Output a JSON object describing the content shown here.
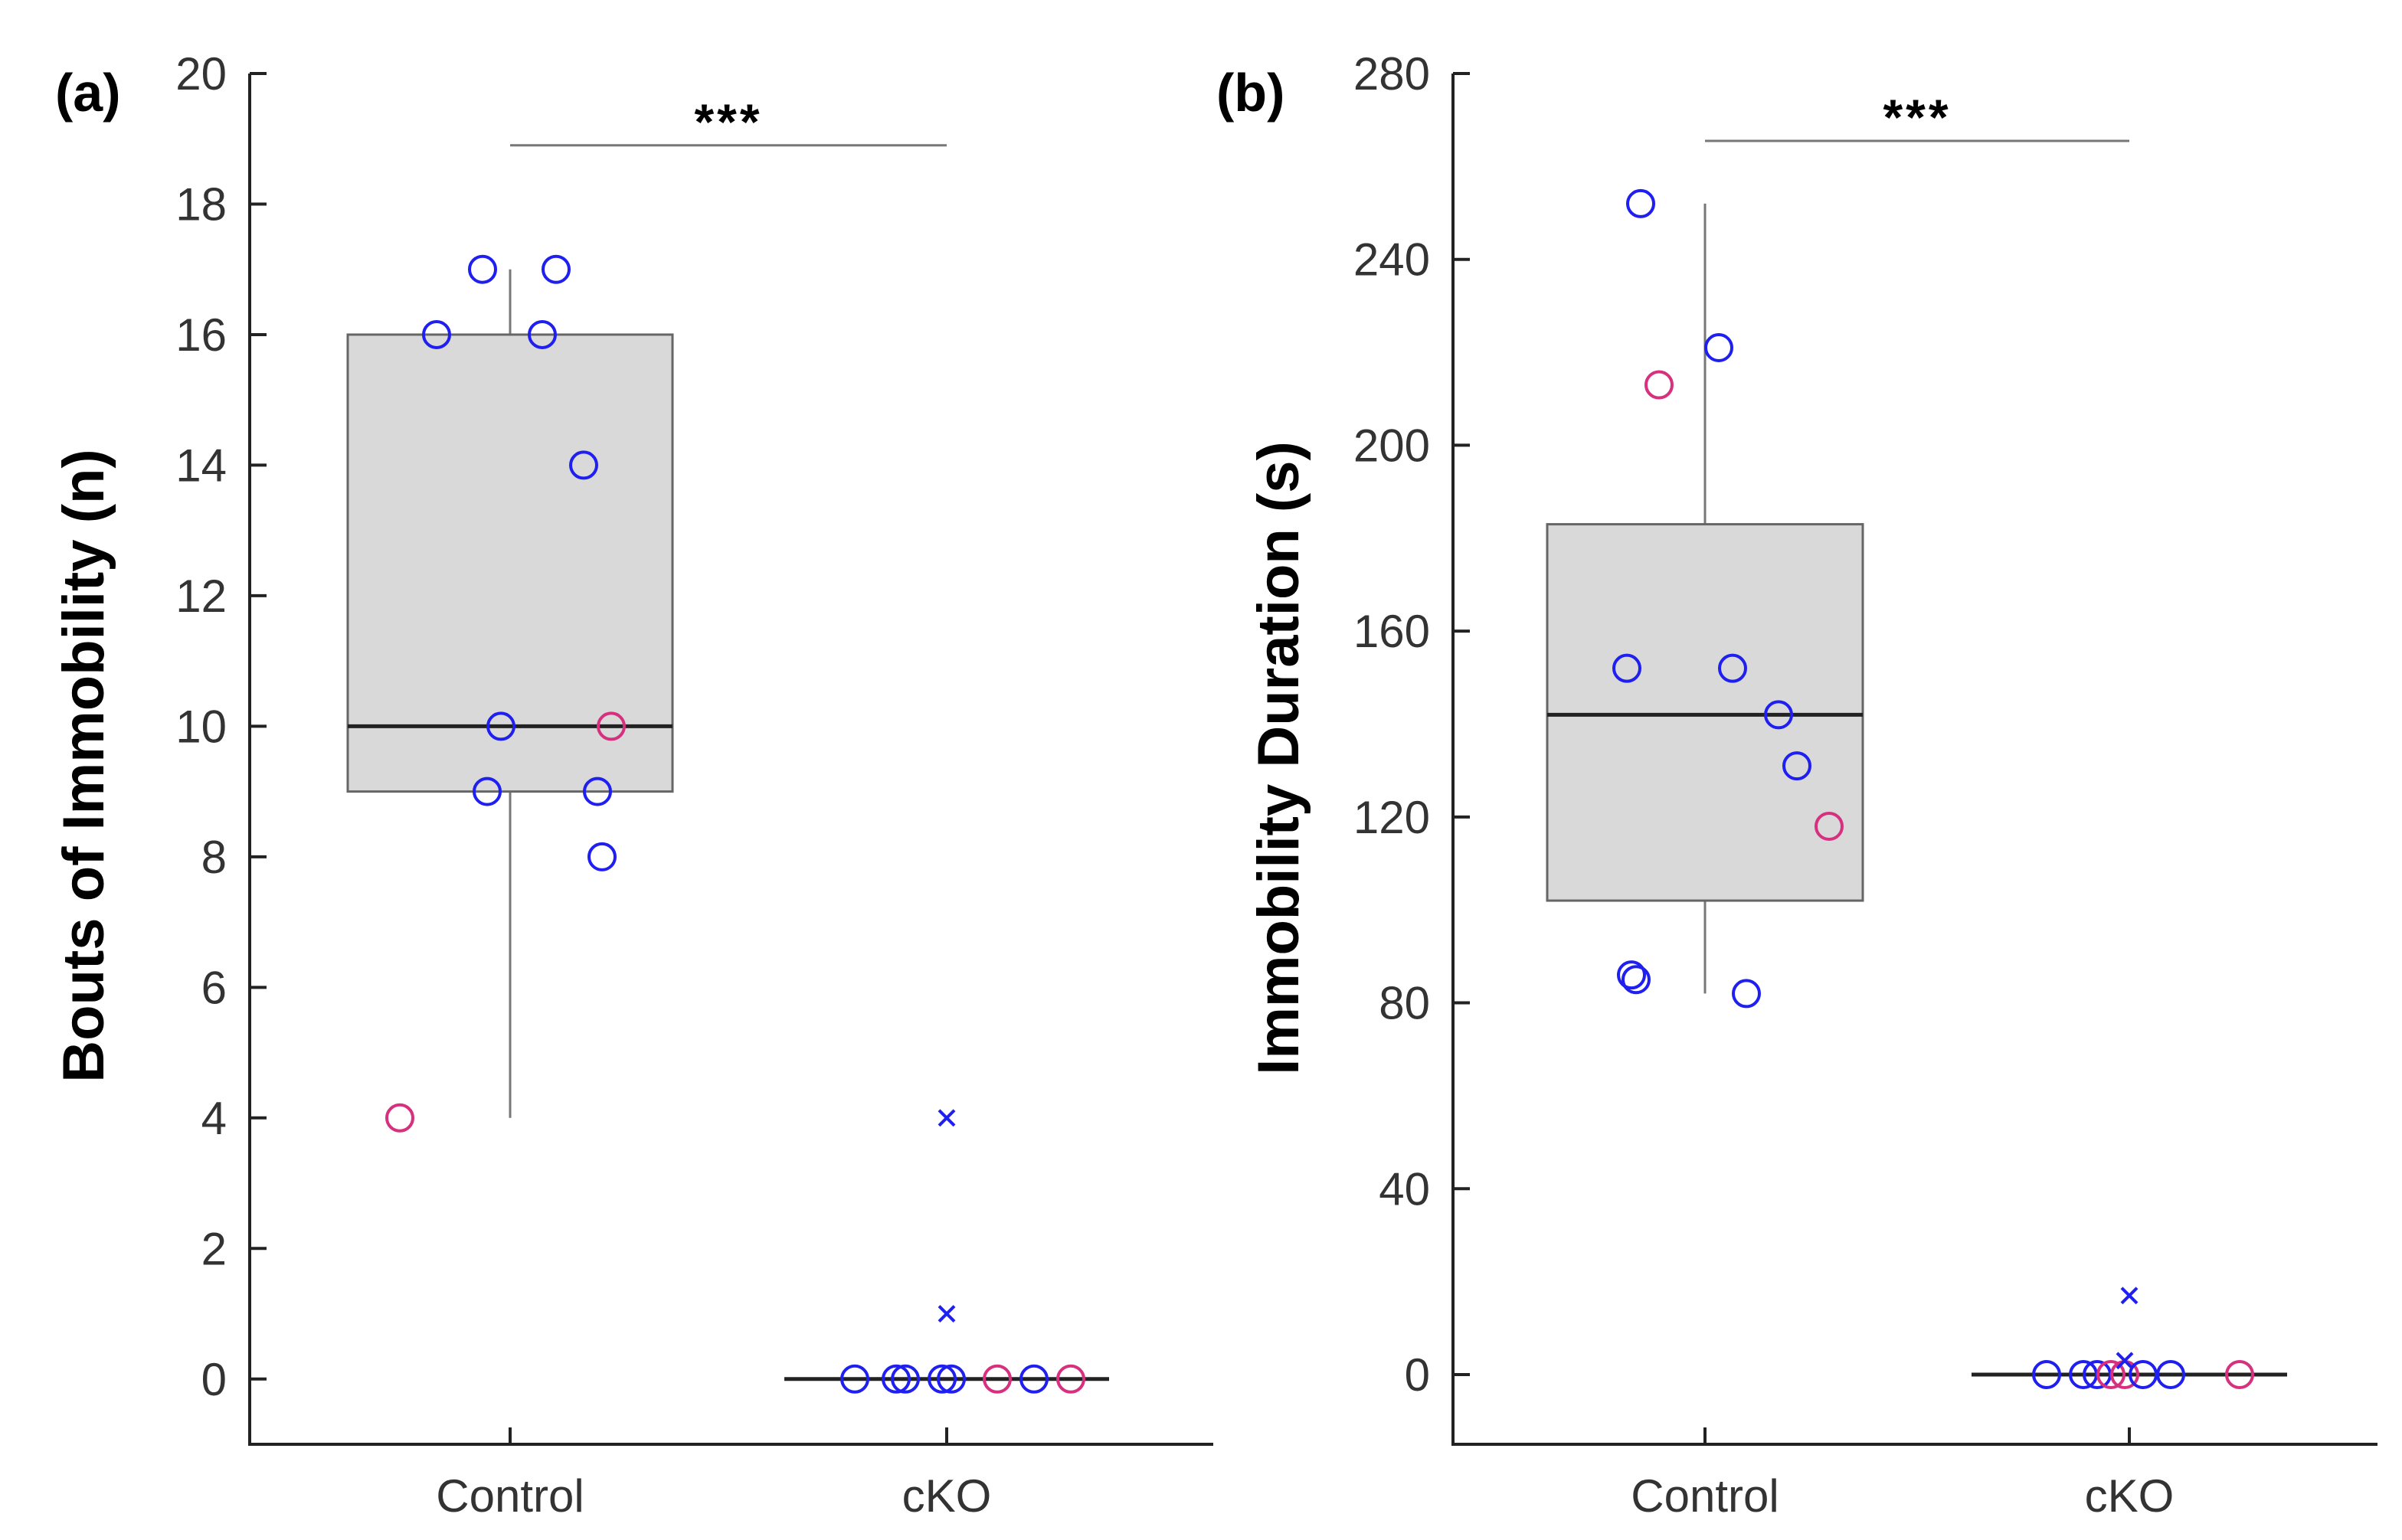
{
  "chart_data": [
    {
      "panel_label": "(a)",
      "type": "box",
      "ylabel": "Bouts of Immobility (n)",
      "ylim": [
        -1,
        20
      ],
      "yticks": [
        0,
        2,
        4,
        6,
        8,
        10,
        12,
        14,
        16,
        18,
        20
      ],
      "categories": [
        "Control",
        "cKO"
      ],
      "boxes": [
        {
          "group": "Control",
          "whisker_low": 4,
          "q1": 9,
          "median": 10,
          "q3": 16,
          "whisker_high": 17
        },
        {
          "group": "cKO",
          "whisker_low": 0,
          "q1": 0,
          "median": 0,
          "q3": 0,
          "whisker_high": 0
        }
      ],
      "points": [
        {
          "group": "Control",
          "jitter": -0.06,
          "value": 17,
          "color": "blue",
          "marker": "o"
        },
        {
          "group": "Control",
          "jitter": 0.1,
          "value": 17,
          "color": "blue",
          "marker": "o"
        },
        {
          "group": "Control",
          "jitter": -0.16,
          "value": 16,
          "color": "blue",
          "marker": "o"
        },
        {
          "group": "Control",
          "jitter": 0.07,
          "value": 16,
          "color": "blue",
          "marker": "o"
        },
        {
          "group": "Control",
          "jitter": 0.16,
          "value": 14,
          "color": "blue",
          "marker": "o"
        },
        {
          "group": "Control",
          "jitter": -0.02,
          "value": 10,
          "color": "blue",
          "marker": "o"
        },
        {
          "group": "Control",
          "jitter": 0.22,
          "value": 10,
          "color": "magenta",
          "marker": "o"
        },
        {
          "group": "Control",
          "jitter": -0.05,
          "value": 9,
          "color": "blue",
          "marker": "o"
        },
        {
          "group": "Control",
          "jitter": 0.19,
          "value": 9,
          "color": "blue",
          "marker": "o"
        },
        {
          "group": "Control",
          "jitter": 0.2,
          "value": 8,
          "color": "blue",
          "marker": "o"
        },
        {
          "group": "Control",
          "jitter": -0.24,
          "value": 4,
          "color": "magenta",
          "marker": "o"
        },
        {
          "group": "cKO",
          "jitter": -0.2,
          "value": 0,
          "color": "blue",
          "marker": "o"
        },
        {
          "group": "cKO",
          "jitter": -0.11,
          "value": 0,
          "color": "blue",
          "marker": "o"
        },
        {
          "group": "cKO",
          "jitter": -0.09,
          "value": 0,
          "color": "blue",
          "marker": "o"
        },
        {
          "group": "cKO",
          "jitter": -0.01,
          "value": 0,
          "color": "blue",
          "marker": "o"
        },
        {
          "group": "cKO",
          "jitter": 0.01,
          "value": 0,
          "color": "blue",
          "marker": "o"
        },
        {
          "group": "cKO",
          "jitter": 0.11,
          "value": 0,
          "color": "magenta",
          "marker": "o"
        },
        {
          "group": "cKO",
          "jitter": 0.19,
          "value": 0,
          "color": "blue",
          "marker": "o"
        },
        {
          "group": "cKO",
          "jitter": 0.27,
          "value": 0,
          "color": "magenta",
          "marker": "o"
        },
        {
          "group": "cKO",
          "jitter": 0.0,
          "value": 4,
          "color": "blue",
          "marker": "x"
        },
        {
          "group": "cKO",
          "jitter": 0.0,
          "value": 1,
          "color": "blue",
          "marker": "x"
        }
      ],
      "significance": {
        "from": "Control",
        "to": "cKO",
        "y": 18.9,
        "label": "***"
      }
    },
    {
      "panel_label": "(b)",
      "type": "box",
      "ylabel": "Immobility Duration (s)",
      "ylim": [
        -15,
        280
      ],
      "yticks": [
        0,
        40,
        80,
        120,
        160,
        200,
        240,
        280
      ],
      "categories": [
        "Control",
        "cKO"
      ],
      "boxes": [
        {
          "group": "Control",
          "whisker_low": 82,
          "q1": 102,
          "median": 142,
          "q3": 183,
          "whisker_high": 252
        },
        {
          "group": "cKO",
          "whisker_low": 0,
          "q1": 0,
          "median": 0,
          "q3": 0,
          "whisker_high": 0
        }
      ],
      "points": [
        {
          "group": "Control",
          "jitter": -0.14,
          "value": 252,
          "color": "blue",
          "marker": "o"
        },
        {
          "group": "Control",
          "jitter": 0.03,
          "value": 221,
          "color": "blue",
          "marker": "o"
        },
        {
          "group": "Control",
          "jitter": -0.1,
          "value": 213,
          "color": "magenta",
          "marker": "o"
        },
        {
          "group": "Control",
          "jitter": -0.17,
          "value": 152,
          "color": "blue",
          "marker": "o"
        },
        {
          "group": "Control",
          "jitter": 0.06,
          "value": 152,
          "color": "blue",
          "marker": "o"
        },
        {
          "group": "Control",
          "jitter": 0.16,
          "value": 142,
          "color": "blue",
          "marker": "o"
        },
        {
          "group": "Control",
          "jitter": 0.2,
          "value": 131,
          "color": "blue",
          "marker": "o"
        },
        {
          "group": "Control",
          "jitter": 0.27,
          "value": 118,
          "color": "magenta",
          "marker": "o"
        },
        {
          "group": "Control",
          "jitter": -0.16,
          "value": 86,
          "color": "blue",
          "marker": "o"
        },
        {
          "group": "Control",
          "jitter": -0.15,
          "value": 85,
          "color": "blue",
          "marker": "o"
        },
        {
          "group": "Control",
          "jitter": 0.09,
          "value": 82,
          "color": "blue",
          "marker": "o"
        },
        {
          "group": "cKO",
          "jitter": -0.18,
          "value": 0,
          "color": "blue",
          "marker": "o"
        },
        {
          "group": "cKO",
          "jitter": -0.1,
          "value": 0,
          "color": "blue",
          "marker": "o"
        },
        {
          "group": "cKO",
          "jitter": -0.07,
          "value": 0,
          "color": "blue",
          "marker": "o"
        },
        {
          "group": "cKO",
          "jitter": -0.04,
          "value": 0,
          "color": "magenta",
          "marker": "o"
        },
        {
          "group": "cKO",
          "jitter": -0.01,
          "value": 0,
          "color": "magenta",
          "marker": "o"
        },
        {
          "group": "cKO",
          "jitter": 0.03,
          "value": 0,
          "color": "blue",
          "marker": "o"
        },
        {
          "group": "cKO",
          "jitter": 0.09,
          "value": 0,
          "color": "blue",
          "marker": "o"
        },
        {
          "group": "cKO",
          "jitter": 0.24,
          "value": 0,
          "color": "magenta",
          "marker": "o"
        },
        {
          "group": "cKO",
          "jitter": 0.0,
          "value": 17,
          "color": "blue",
          "marker": "x"
        },
        {
          "group": "cKO",
          "jitter": -0.01,
          "value": 3,
          "color": "blue",
          "marker": "x"
        }
      ],
      "significance": {
        "from": "Control",
        "to": "cKO",
        "y": 265.5,
        "label": "***"
      }
    }
  ],
  "colors": {
    "blue": "#1f1ff0",
    "magenta": "#d6307e",
    "box_fill": "#d9d9d9",
    "box_edge": "#666666",
    "median": "#222222",
    "whisker": "#777777",
    "axis": "#222222"
  }
}
